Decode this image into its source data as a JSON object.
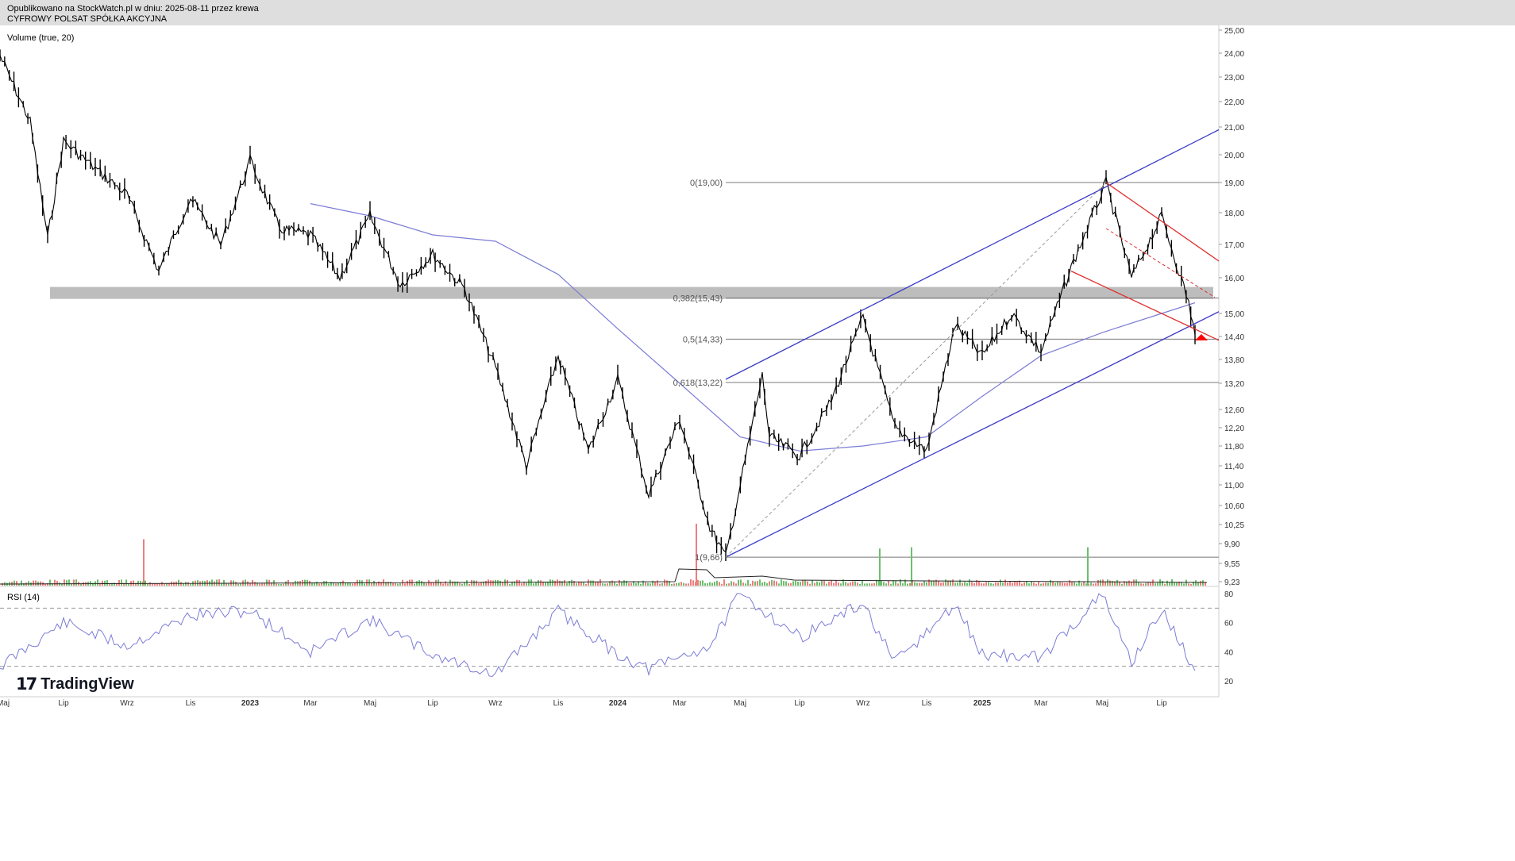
{
  "header": {
    "published": "Opublikowano na StockWatch.pl w dniu: 2025-08-11 przez krewa",
    "symbol": "CYFROWY POLSAT SPÓŁKA AKCYJNA"
  },
  "branding": {
    "logo_icon": "tradingview-logo-icon",
    "logo_text": "TradingView"
  },
  "colors": {
    "candle": "#000000",
    "ma": "#7c7cd6",
    "channel": "#3b3bc8",
    "downtrend": "#e03030",
    "fib": "#787878",
    "zone": "#bdbdbd",
    "vol_up": "#6cbf6c",
    "vol_down": "#ef7d7d",
    "rsi": "#7c7cd6",
    "marker": "#ff0000"
  },
  "chart_data": [
    {
      "type": "candlestick",
      "series_name": "",
      "y_ticks": [
        "25,00",
        "24,00",
        "23,00",
        "22,00",
        "21,00",
        "20,00",
        "19,00",
        "18,00",
        "17,00",
        "16,00",
        "15,00",
        "14,40",
        "13,80",
        "13,20",
        "12,60",
        "12,20",
        "11,80",
        "11,40",
        "11,00",
        "10,60",
        "10,25",
        "9,90",
        "9,55",
        "9,23"
      ],
      "x_ticks": [
        "Maj",
        "Lip",
        "Wrz",
        "Lis",
        "2023",
        "Mar",
        "Maj",
        "Lip",
        "Wrz",
        "Lis",
        "2024",
        "Mar",
        "Maj",
        "Lip",
        "Wrz",
        "Lis",
        "2025",
        "Mar",
        "Maj",
        "Lip"
      ],
      "price_path": [
        {
          "x": "2022-05",
          "y": 23.9
        },
        {
          "x": "2022-06",
          "y": 21.2
        },
        {
          "x": "2022-06b",
          "y": 17.2
        },
        {
          "x": "2022-07",
          "y": 20.5
        },
        {
          "x": "2022-08",
          "y": 19.5
        },
        {
          "x": "2022-09",
          "y": 18.6
        },
        {
          "x": "2022-10",
          "y": 16.2
        },
        {
          "x": "2022-11",
          "y": 18.5
        },
        {
          "x": "2022-12",
          "y": 17.0
        },
        {
          "x": "2023-01",
          "y": 19.8
        },
        {
          "x": "2023-02",
          "y": 17.5
        },
        {
          "x": "2023-03",
          "y": 17.3
        },
        {
          "x": "2023-04",
          "y": 16.0
        },
        {
          "x": "2023-05",
          "y": 17.9
        },
        {
          "x": "2023-06",
          "y": 15.8
        },
        {
          "x": "2023-07",
          "y": 16.7
        },
        {
          "x": "2023-08",
          "y": 15.7
        },
        {
          "x": "2023-09",
          "y": 13.6
        },
        {
          "x": "2023-10",
          "y": 11.4
        },
        {
          "x": "2023-11",
          "y": 13.9
        },
        {
          "x": "2023-12",
          "y": 11.7
        },
        {
          "x": "2024-01",
          "y": 13.3
        },
        {
          "x": "2024-02",
          "y": 10.8
        },
        {
          "x": "2024-03",
          "y": 12.4
        },
        {
          "x": "2024-04",
          "y": 10.2
        },
        {
          "x": "2024-05",
          "y": 9.66
        },
        {
          "x": "2024-05b",
          "y": 13.4
        },
        {
          "x": "2024-06",
          "y": 12.0
        },
        {
          "x": "2024-07",
          "y": 11.6
        },
        {
          "x": "2024-08",
          "y": 12.8
        },
        {
          "x": "2024-09",
          "y": 14.9
        },
        {
          "x": "2024-10",
          "y": 12.2
        },
        {
          "x": "2024-11",
          "y": 11.7
        },
        {
          "x": "2024-12",
          "y": 14.7
        },
        {
          "x": "2025-01",
          "y": 13.9
        },
        {
          "x": "2025-02",
          "y": 15.0
        },
        {
          "x": "2025-03",
          "y": 14.0
        },
        {
          "x": "2025-04",
          "y": 16.3
        },
        {
          "x": "2025-05",
          "y": 19.0
        },
        {
          "x": "2025-06",
          "y": 16.0
        },
        {
          "x": "2025-07",
          "y": 17.9
        },
        {
          "x": "2025-07b",
          "y": 15.3
        },
        {
          "x": "2025-08",
          "y": 14.45
        }
      ],
      "moving_average": [
        {
          "x": "2023-03",
          "y": 18.3
        },
        {
          "x": "2023-05",
          "y": 17.9
        },
        {
          "x": "2023-07",
          "y": 17.3
        },
        {
          "x": "2023-09",
          "y": 17.1
        },
        {
          "x": "2023-11",
          "y": 16.1
        },
        {
          "x": "2024-01",
          "y": 14.6
        },
        {
          "x": "2024-03",
          "y": 13.2
        },
        {
          "x": "2024-05",
          "y": 12.0
        },
        {
          "x": "2024-07",
          "y": 11.7
        },
        {
          "x": "2024-09",
          "y": 11.8
        },
        {
          "x": "2024-11",
          "y": 12.0
        },
        {
          "x": "2025-01",
          "y": 12.9
        },
        {
          "x": "2025-03",
          "y": 13.9
        },
        {
          "x": "2025-05",
          "y": 14.5
        },
        {
          "x": "2025-07",
          "y": 15.0
        },
        {
          "x": "2025-08",
          "y": 15.3
        }
      ],
      "fibonacci_levels": [
        {
          "label": "0(19,00)",
          "value": 19.0
        },
        {
          "label": "0,382(15,43)",
          "value": 15.43
        },
        {
          "label": "0,5(14,33)",
          "value": 14.33
        },
        {
          "label": "0,618(13,22)",
          "value": 13.22
        },
        {
          "label": "1(9,66)",
          "value": 9.66
        }
      ],
      "support_zone": [
        15.43,
        15.72
      ],
      "ascending_channel": {
        "lower": [
          {
            "x": "2024-05",
            "y": 9.66
          },
          {
            "x": "2025-08",
            "y": 15.05
          }
        ],
        "upper": [
          {
            "x": "2024-05",
            "y": 13.3
          },
          {
            "x": "2025-08",
            "y": 20.9
          }
        ]
      },
      "descending_channel": {
        "upper": [
          {
            "x": "2025-05",
            "y": 19.0
          },
          {
            "x": "2025-08",
            "y": 16.5
          }
        ],
        "lower": [
          {
            "x": "2025-04",
            "y": 16.2
          },
          {
            "x": "2025-08",
            "y": 14.3
          }
        ]
      }
    },
    {
      "type": "bar",
      "title": "Volume (true, 20)",
      "spikes": [
        {
          "x": "2022-09",
          "value": 0.75
        },
        {
          "x": "2024-03",
          "value": 1.0
        },
        {
          "x": "2024-09",
          "value": 0.6
        },
        {
          "x": "2024-10",
          "value": 0.62
        },
        {
          "x": "2025-04",
          "value": 0.62
        }
      ]
    },
    {
      "type": "line",
      "title": "RSI (14)",
      "y_ticks": [
        "80",
        "60",
        "40",
        "20"
      ],
      "levels": [
        70,
        30
      ],
      "values": [
        {
          "x": "2022-05",
          "y": 30
        },
        {
          "x": "2022-07",
          "y": 60
        },
        {
          "x": "2022-09",
          "y": 44
        },
        {
          "x": "2022-11",
          "y": 65
        },
        {
          "x": "2023-01",
          "y": 68
        },
        {
          "x": "2023-03",
          "y": 40
        },
        {
          "x": "2023-05",
          "y": 62
        },
        {
          "x": "2023-07",
          "y": 38
        },
        {
          "x": "2023-09",
          "y": 24
        },
        {
          "x": "2023-11",
          "y": 68
        },
        {
          "x": "2024-01",
          "y": 38
        },
        {
          "x": "2024-02",
          "y": 28
        },
        {
          "x": "2024-04",
          "y": 44
        },
        {
          "x": "2024-05",
          "y": 80
        },
        {
          "x": "2024-07",
          "y": 50
        },
        {
          "x": "2024-09",
          "y": 73
        },
        {
          "x": "2024-10",
          "y": 32
        },
        {
          "x": "2024-12",
          "y": 72
        },
        {
          "x": "2025-01",
          "y": 38
        },
        {
          "x": "2025-03",
          "y": 36
        },
        {
          "x": "2025-05",
          "y": 79
        },
        {
          "x": "2025-06",
          "y": 33
        },
        {
          "x": "2025-07",
          "y": 69
        },
        {
          "x": "2025-08",
          "y": 27
        }
      ]
    }
  ]
}
